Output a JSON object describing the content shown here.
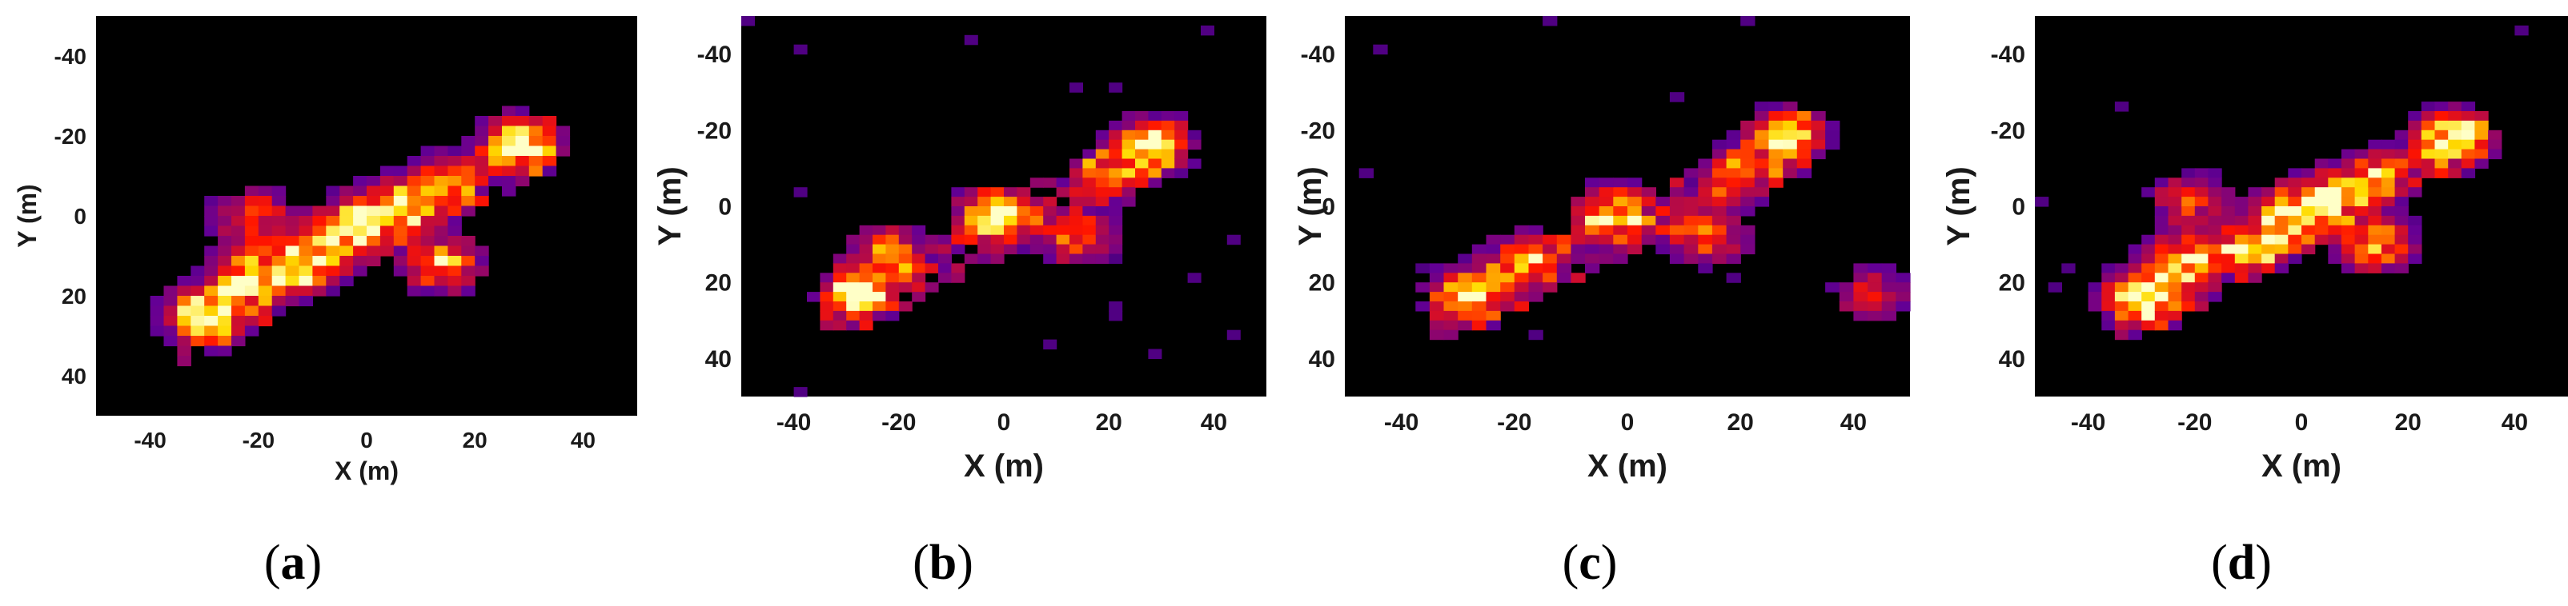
{
  "chart_data": [
    {
      "panel_label": "a",
      "type": "heatmap",
      "xlabel": "X (m)",
      "ylabel": "Y (m)",
      "xticks": [
        "-40",
        "-20",
        "0",
        "20",
        "40"
      ],
      "yticks": [
        "-40",
        "-20",
        "0",
        "20",
        "40"
      ],
      "xlim": [
        -50,
        50
      ],
      "ylim": [
        -50,
        50
      ],
      "y_axis": "reversed",
      "colormap": "hot",
      "blobs": [
        {
          "x": -30,
          "y": 25,
          "intensity": 1.0
        },
        {
          "x": -22,
          "y": 15,
          "intensity": 0.85
        },
        {
          "x": -12,
          "y": 12,
          "intensity": 0.7
        },
        {
          "x": -3,
          "y": 3,
          "intensity": 0.95
        },
        {
          "x": 5,
          "y": -2,
          "intensity": 0.75
        },
        {
          "x": 14,
          "y": -8,
          "intensity": 0.65
        },
        {
          "x": 28,
          "y": -18,
          "intensity": 1.0
        },
        {
          "x": 14,
          "y": 12,
          "intensity": 0.8
        },
        {
          "x": -21,
          "y": 0,
          "intensity": 0.55
        }
      ]
    },
    {
      "panel_label": "b",
      "type": "heatmap",
      "xlabel": "X (m)",
      "ylabel": "Y (m)",
      "xticks": [
        "-40",
        "-20",
        "0",
        "20",
        "40"
      ],
      "yticks": [
        "-40",
        "-20",
        "0",
        "20",
        "40"
      ],
      "xlim": [
        -50,
        50
      ],
      "ylim": [
        -50,
        50
      ],
      "y_axis": "reversed",
      "colormap": "hot",
      "blobs": [
        {
          "x": -28,
          "y": 23,
          "intensity": 1.0
        },
        {
          "x": -22,
          "y": 12,
          "intensity": 0.7
        },
        {
          "x": -2,
          "y": 2,
          "intensity": 1.0
        },
        {
          "x": 14,
          "y": 8,
          "intensity": 0.75
        },
        {
          "x": 28,
          "y": -16,
          "intensity": 1.0
        },
        {
          "x": 20,
          "y": -8,
          "intensity": 0.6
        }
      ]
    },
    {
      "panel_label": "c",
      "type": "heatmap",
      "xlabel": "X (m)",
      "ylabel": "Y (m)",
      "xticks": [
        "-40",
        "-20",
        "0",
        "20",
        "40"
      ],
      "yticks": [
        "-40",
        "-20",
        "0",
        "20",
        "40"
      ],
      "xlim": [
        -50,
        50
      ],
      "ylim": [
        -50,
        50
      ],
      "y_axis": "reversed",
      "colormap": "hot",
      "blobs": [
        {
          "x": -28,
          "y": 23,
          "intensity": 0.9
        },
        {
          "x": -18,
          "y": 14,
          "intensity": 0.65
        },
        {
          "x": -2,
          "y": 2,
          "intensity": 0.95
        },
        {
          "x": 14,
          "y": 8,
          "intensity": 0.7
        },
        {
          "x": 28,
          "y": -18,
          "intensity": 0.95
        },
        {
          "x": 20,
          "y": -8,
          "intensity": 0.55
        },
        {
          "x": 43,
          "y": 23,
          "intensity": 0.45
        }
      ]
    },
    {
      "panel_label": "d",
      "type": "heatmap",
      "xlabel": "X (m)",
      "ylabel": "Y (m)",
      "xticks": [
        "-40",
        "-20",
        "0",
        "20",
        "40"
      ],
      "yticks": [
        "-40",
        "-20",
        "0",
        "20",
        "40"
      ],
      "xlim": [
        -50,
        50
      ],
      "ylim": [
        -50,
        50
      ],
      "y_axis": "reversed",
      "colormap": "hot",
      "blobs": [
        {
          "x": -30,
          "y": 24,
          "intensity": 1.0
        },
        {
          "x": -22,
          "y": 14,
          "intensity": 0.85
        },
        {
          "x": -10,
          "y": 11,
          "intensity": 0.7
        },
        {
          "x": -2,
          "y": 2,
          "intensity": 0.95
        },
        {
          "x": 6,
          "y": -3,
          "intensity": 0.7
        },
        {
          "x": 14,
          "y": -8,
          "intensity": 0.6
        },
        {
          "x": 28,
          "y": -18,
          "intensity": 1.0
        },
        {
          "x": 14,
          "y": 10,
          "intensity": 0.8
        },
        {
          "x": -21,
          "y": -2,
          "intensity": 0.55
        }
      ]
    }
  ]
}
